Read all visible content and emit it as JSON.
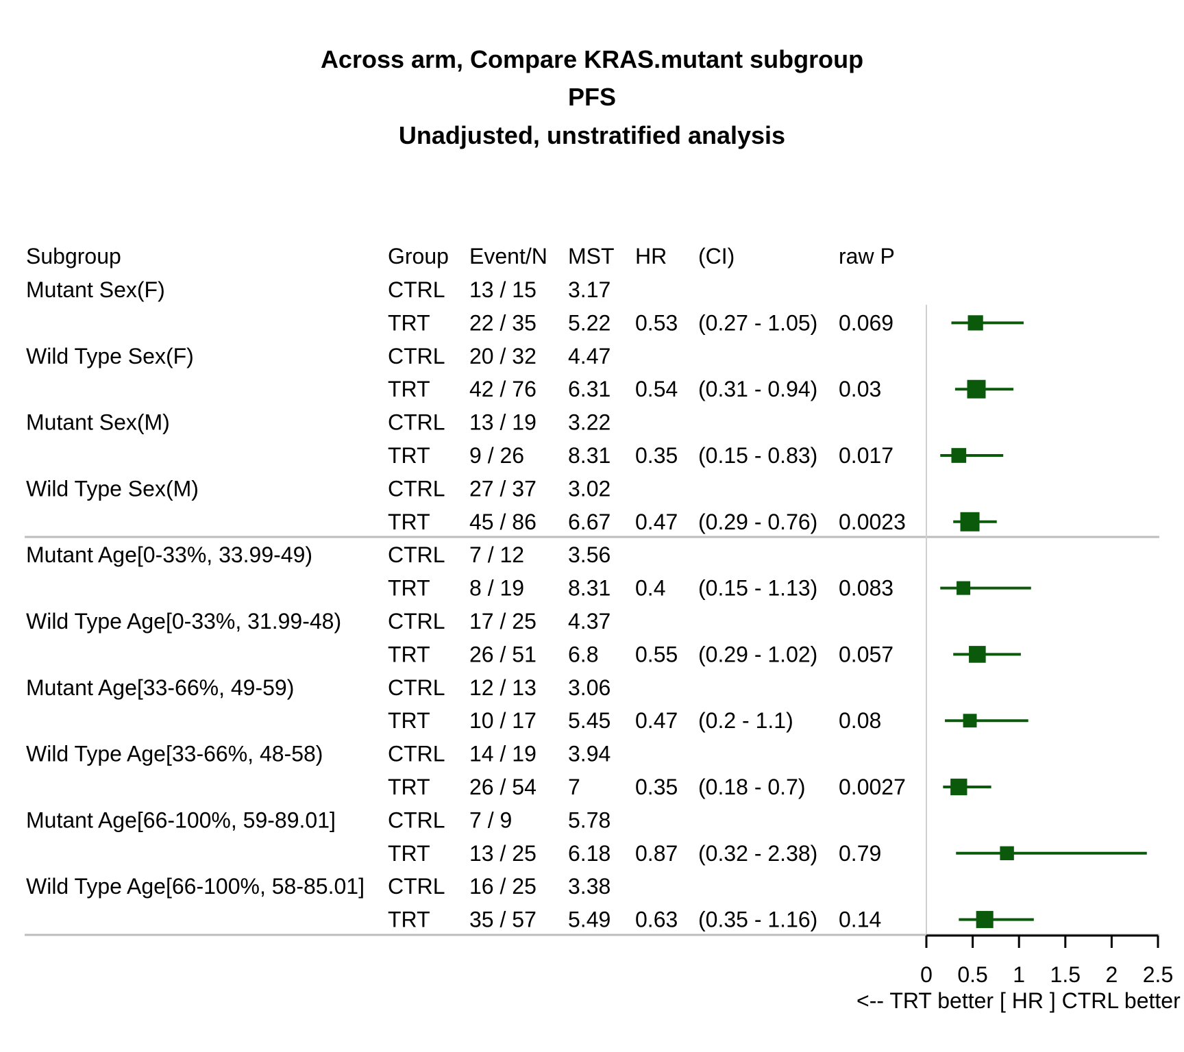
{
  "chart_data": {
    "type": "forest",
    "title": "Across arm, Compare KRAS.mutant subgroup",
    "subtitle": "PFS",
    "subtitle2": "Unadjusted, unstratified analysis",
    "headers": {
      "subgroup": "Subgroup",
      "group": "Group",
      "event_n": "Event/N",
      "mst": "MST",
      "hr": "HR",
      "ci": "(CI)",
      "p": "raw P"
    },
    "rows": [
      {
        "subgroup": "Mutant Sex(F)",
        "group": "CTRL",
        "event_n": "13 / 15",
        "mst": "3.17",
        "hr": "",
        "ci": "",
        "p": ""
      },
      {
        "subgroup": "",
        "group": "TRT",
        "event_n": "22 / 35",
        "mst": "5.22",
        "hr": "0.53",
        "ci": "(0.27 - 1.05)",
        "p": "0.069"
      },
      {
        "subgroup": "Wild Type Sex(F)",
        "group": "CTRL",
        "event_n": "20 / 32",
        "mst": "4.47",
        "hr": "",
        "ci": "",
        "p": ""
      },
      {
        "subgroup": "",
        "group": "TRT",
        "event_n": "42 / 76",
        "mst": "6.31",
        "hr": "0.54",
        "ci": "(0.31 - 0.94)",
        "p": "0.03"
      },
      {
        "subgroup": "Mutant Sex(M)",
        "group": "CTRL",
        "event_n": "13 / 19",
        "mst": "3.22",
        "hr": "",
        "ci": "",
        "p": ""
      },
      {
        "subgroup": "",
        "group": "TRT",
        "event_n": "9 / 26",
        "mst": "8.31",
        "hr": "0.35",
        "ci": "(0.15 - 0.83)",
        "p": "0.017"
      },
      {
        "subgroup": "Wild Type Sex(M)",
        "group": "CTRL",
        "event_n": "27 / 37",
        "mst": "3.02",
        "hr": "",
        "ci": "",
        "p": ""
      },
      {
        "subgroup": "",
        "group": "TRT",
        "event_n": "45 / 86",
        "mst": "6.67",
        "hr": "0.47",
        "ci": "(0.29 - 0.76)",
        "p": "0.0023"
      },
      {
        "subgroup": "Mutant Age[0-33%, 33.99-49)",
        "group": "CTRL",
        "event_n": "7 / 12",
        "mst": "3.56",
        "hr": "",
        "ci": "",
        "p": ""
      },
      {
        "subgroup": "",
        "group": "TRT",
        "event_n": "8 / 19",
        "mst": "8.31",
        "hr": "0.4",
        "ci": "(0.15 - 1.13)",
        "p": "0.083"
      },
      {
        "subgroup": "Wild Type Age[0-33%, 31.99-48)",
        "group": "CTRL",
        "event_n": "17 / 25",
        "mst": "4.37",
        "hr": "",
        "ci": "",
        "p": ""
      },
      {
        "subgroup": "",
        "group": "TRT",
        "event_n": "26 / 51",
        "mst": "6.8",
        "hr": "0.55",
        "ci": "(0.29 - 1.02)",
        "p": "0.057"
      },
      {
        "subgroup": "Mutant Age[33-66%, 49-59)",
        "group": "CTRL",
        "event_n": "12 / 13",
        "mst": "3.06",
        "hr": "",
        "ci": "",
        "p": ""
      },
      {
        "subgroup": "",
        "group": "TRT",
        "event_n": "10 / 17",
        "mst": "5.45",
        "hr": "0.47",
        "ci": "(0.2 - 1.1)",
        "p": "0.08"
      },
      {
        "subgroup": "Wild Type Age[33-66%, 48-58)",
        "group": "CTRL",
        "event_n": "14 / 19",
        "mst": "3.94",
        "hr": "",
        "ci": "",
        "p": ""
      },
      {
        "subgroup": "",
        "group": "TRT",
        "event_n": "26 / 54",
        "mst": "7",
        "hr": "0.35",
        "ci": "(0.18 - 0.7)",
        "p": "0.0027"
      },
      {
        "subgroup": "Mutant Age[66-100%, 59-89.01]",
        "group": "CTRL",
        "event_n": "7 / 9",
        "mst": "5.78",
        "hr": "",
        "ci": "",
        "p": ""
      },
      {
        "subgroup": "",
        "group": "TRT",
        "event_n": "13 / 25",
        "mst": "6.18",
        "hr": "0.87",
        "ci": "(0.32 - 2.38)",
        "p": "0.79"
      },
      {
        "subgroup": "Wild Type Age[66-100%, 58-85.01]",
        "group": "CTRL",
        "event_n": "16 / 25",
        "mst": "3.38",
        "hr": "",
        "ci": "",
        "p": ""
      },
      {
        "subgroup": "",
        "group": "TRT",
        "event_n": "35 / 57",
        "mst": "5.49",
        "hr": "0.63",
        "ci": "(0.35 - 1.16)",
        "p": "0.14"
      }
    ],
    "estimates": [
      {
        "hr": 0.53,
        "lo": 0.27,
        "hi": 1.05,
        "n": 50
      },
      {
        "hr": 0.54,
        "lo": 0.31,
        "hi": 0.94,
        "n": 108
      },
      {
        "hr": 0.35,
        "lo": 0.15,
        "hi": 0.83,
        "n": 45
      },
      {
        "hr": 0.47,
        "lo": 0.29,
        "hi": 0.76,
        "n": 123
      },
      {
        "hr": 0.4,
        "lo": 0.15,
        "hi": 1.13,
        "n": 31
      },
      {
        "hr": 0.55,
        "lo": 0.29,
        "hi": 1.02,
        "n": 76
      },
      {
        "hr": 0.47,
        "lo": 0.2,
        "hi": 1.1,
        "n": 30
      },
      {
        "hr": 0.35,
        "lo": 0.18,
        "hi": 0.7,
        "n": 73
      },
      {
        "hr": 0.87,
        "lo": 0.32,
        "hi": 2.38,
        "n": 34
      },
      {
        "hr": 0.63,
        "lo": 0.35,
        "hi": 1.16,
        "n": 82
      }
    ],
    "xlim": [
      0,
      2.5
    ],
    "x_ticks": [
      "0",
      "0.5",
      "1",
      "1.5",
      "2",
      "2.5"
    ],
    "xlabel": "<--  TRT better [ HR ]  CTRL better  -->",
    "marker_color": "#0b5a0b",
    "reference_line_color": "#d0d0d0",
    "separator_color": "#bdbdbd"
  }
}
